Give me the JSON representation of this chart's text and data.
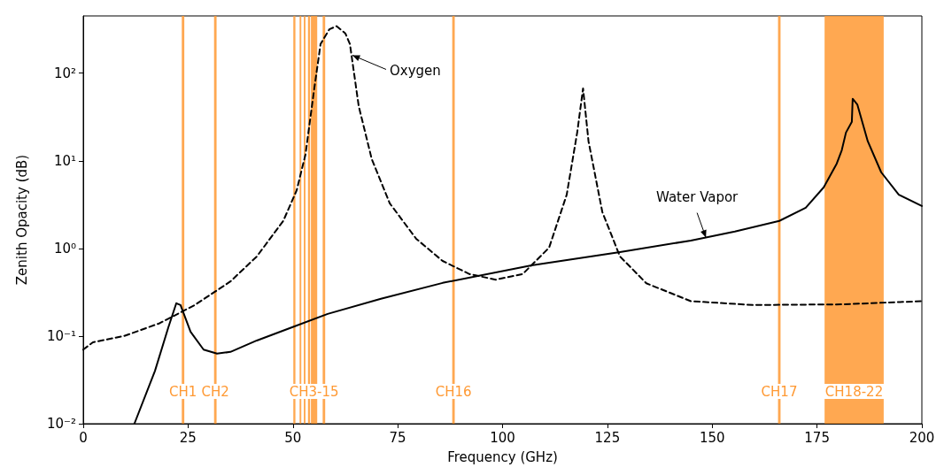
{
  "chart_data": {
    "type": "line",
    "xlabel": "Frequency (GHz)",
    "ylabel": "Zenith Opacity (dB)",
    "log": "y",
    "grid": false,
    "marker": "none",
    "xlim": [
      0,
      200
    ],
    "xticks": [
      0,
      25,
      50,
      75,
      100,
      125,
      150,
      175,
      200
    ],
    "ylim": [
      0.01,
      450
    ],
    "yticks": [
      {
        "value": 0.01,
        "label": "10⁻²"
      },
      {
        "value": 0.1,
        "label": "10⁻¹"
      },
      {
        "value": 1,
        "label": "10⁰"
      },
      {
        "value": 10,
        "label": "10¹"
      },
      {
        "value": 100,
        "label": "10²"
      }
    ],
    "series": [
      {
        "color": "#000000",
        "line_style": "solid",
        "x": [
          12.2,
          17.1,
          20.3,
          22.2,
          23.2,
          25.6,
          28.7,
          31.9,
          35.1,
          41.4,
          49.8,
          58.3,
          71,
          85.7,
          106.9,
          128,
          144.9,
          155.4,
          166,
          172.3,
          176.6,
          179.7,
          180.9,
          181.9,
          183.3,
          183.5,
          184.6,
          187.1,
          190.3,
          194.5,
          200
        ],
        "values": [
          0.01,
          0.04,
          0.126,
          0.237,
          0.226,
          0.112,
          0.07,
          0.063,
          0.066,
          0.089,
          0.126,
          0.179,
          0.266,
          0.404,
          0.64,
          0.91,
          1.23,
          1.56,
          2.06,
          2.91,
          4.98,
          9.3,
          13.2,
          21,
          27.8,
          51,
          44,
          16.7,
          7.4,
          4.1,
          3.05
        ]
      },
      {
        "color": "#000000",
        "line_style": "dashed",
        "x": [
          0,
          2.3,
          9.7,
          18.2,
          26.6,
          35.1,
          41.4,
          47.7,
          50.9,
          53,
          55.1,
          56.6,
          58.7,
          60.4,
          62.5,
          63.6,
          65.7,
          68.8,
          73.1,
          79.4,
          85.7,
          92.1,
          98.4,
          104.8,
          111.1,
          115.3,
          117.8,
          119.2,
          120.5,
          123.8,
          128,
          134.3,
          144.9,
          159.7,
          180.8,
          200
        ],
        "values": [
          0.07,
          0.085,
          0.1,
          0.14,
          0.226,
          0.42,
          0.81,
          2.06,
          4.6,
          11.8,
          67,
          215,
          317,
          344,
          285,
          215,
          42,
          10.5,
          3.27,
          1.29,
          0.72,
          0.51,
          0.44,
          0.51,
          1.02,
          4.1,
          21,
          67,
          16.7,
          2.6,
          0.81,
          0.4,
          0.25,
          0.226,
          0.23,
          0.25
        ]
      }
    ],
    "bands": [
      {
        "axis": "x",
        "from": 23.5,
        "to": 24.1,
        "label": "CH1",
        "color": "#ff9933"
      },
      {
        "axis": "x",
        "from": 31.2,
        "to": 31.8,
        "label": "CH2",
        "color": "#ff9933"
      },
      {
        "axis": "x",
        "from": 50.1,
        "to": 50.6,
        "label": null,
        "color": "#ff9933"
      },
      {
        "axis": "x",
        "from": 51.6,
        "to": 52.0,
        "label": null,
        "color": "#ff9933"
      },
      {
        "axis": "x",
        "from": 52.6,
        "to": 53.0,
        "label": null,
        "color": "#ff9933"
      },
      {
        "axis": "x",
        "from": 53.6,
        "to": 54.1,
        "label": null,
        "color": "#ff9933"
      },
      {
        "axis": "x",
        "from": 54.3,
        "to": 55.8,
        "label": "CH3-15",
        "color": "#ff9933"
      },
      {
        "axis": "x",
        "from": 57.1,
        "to": 57.7,
        "label": null,
        "color": "#ff9933"
      },
      {
        "axis": "x",
        "from": 88,
        "to": 88.6,
        "label": "CH16",
        "color": "#ff9933"
      },
      {
        "axis": "x",
        "from": 165.7,
        "to": 166.3,
        "label": "CH17",
        "color": "#ff9933"
      },
      {
        "axis": "x",
        "from": 176.8,
        "to": 190.9,
        "label": "CH18-22",
        "color": "#ff9933"
      }
    ],
    "annotations": [
      {
        "text": "Oxygen",
        "x": 64.2,
        "y": 160
      },
      {
        "text": "Water Vapor",
        "x": 148.5,
        "y": 1.33
      }
    ]
  }
}
